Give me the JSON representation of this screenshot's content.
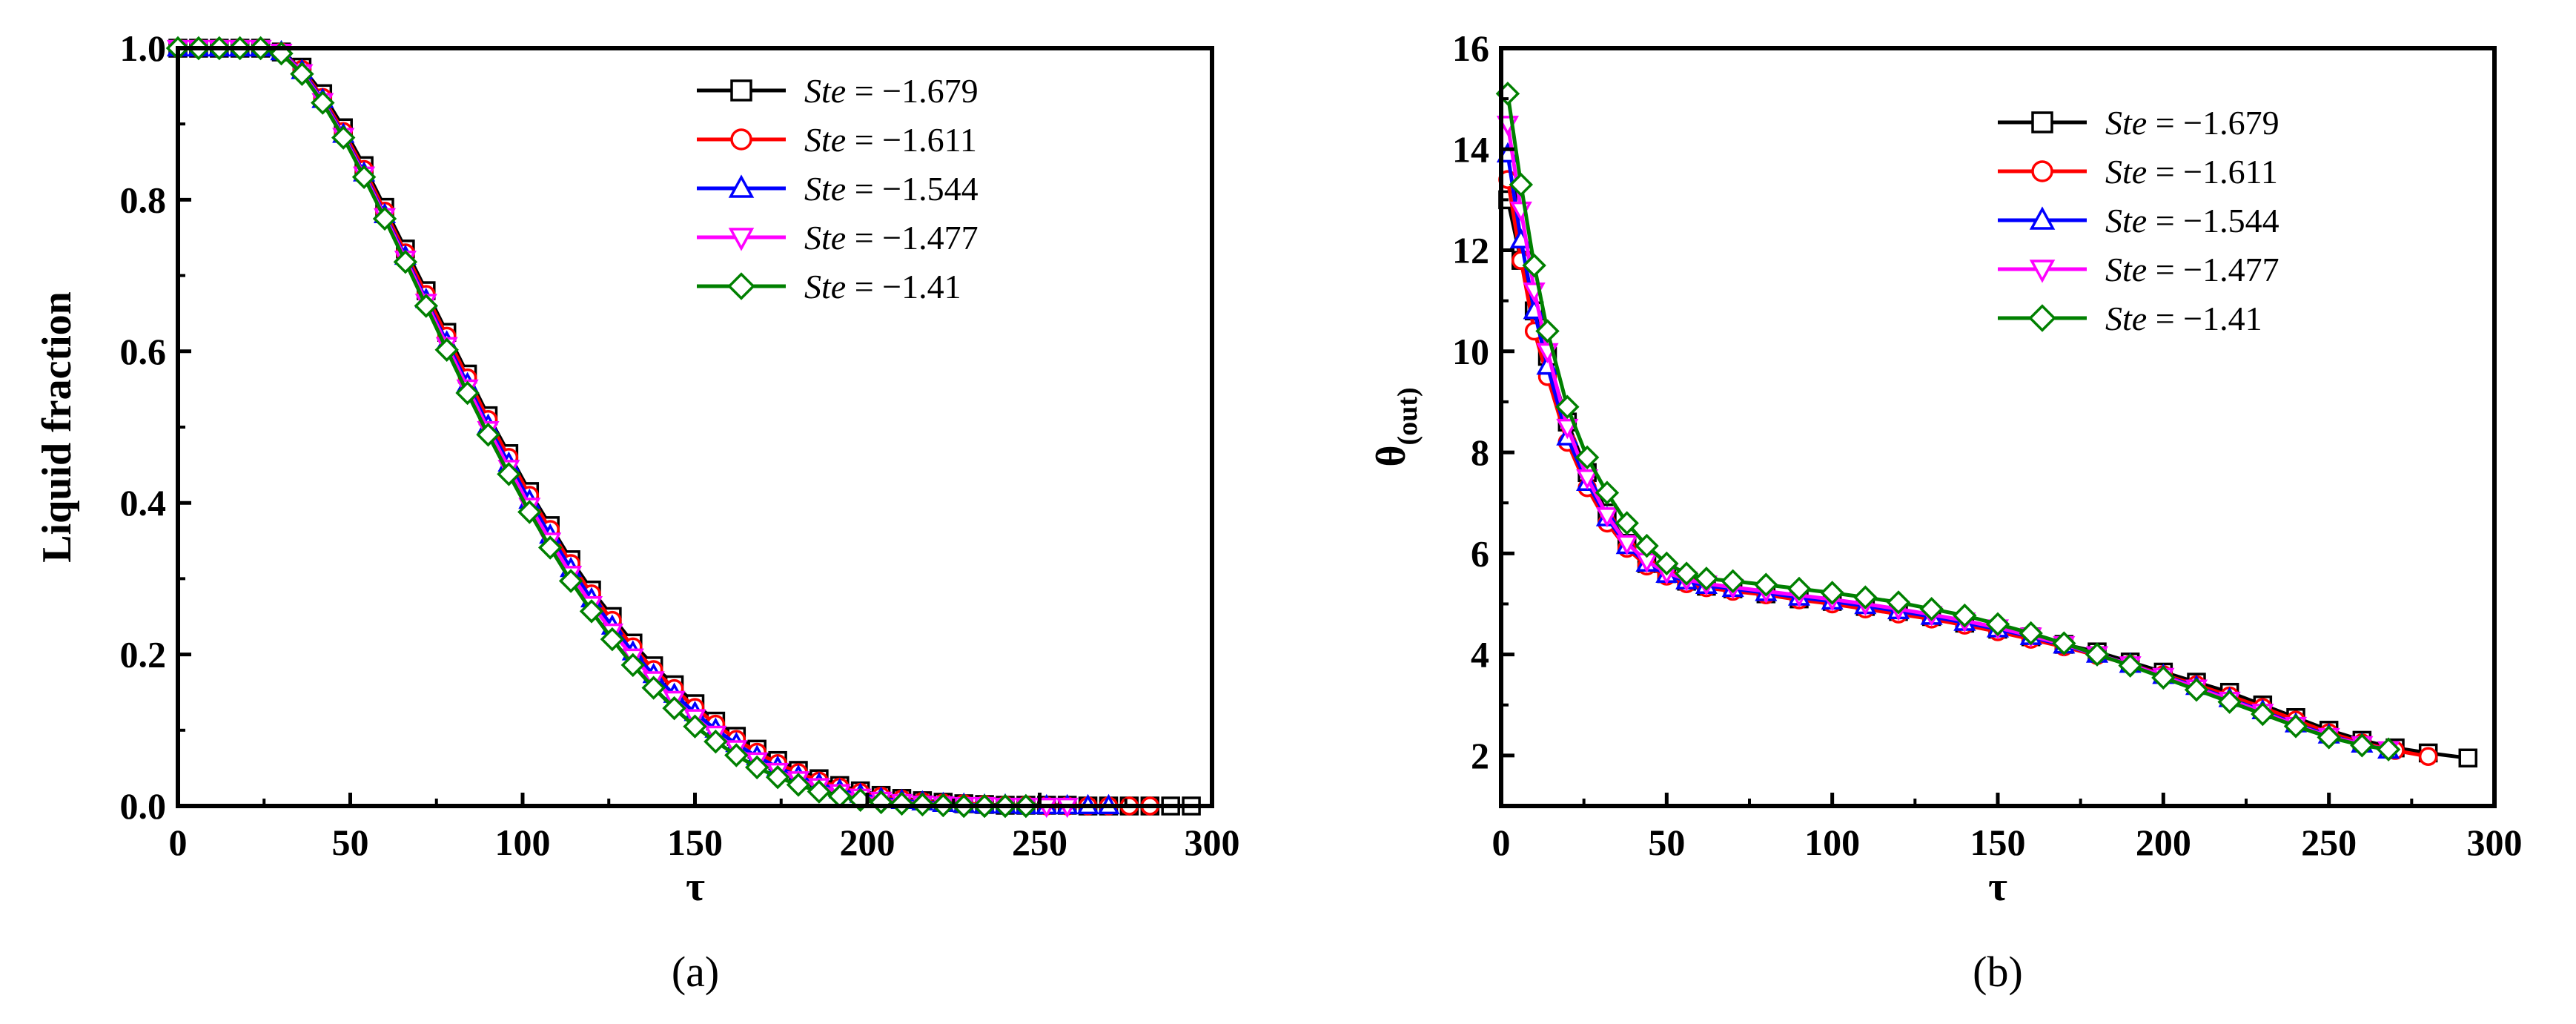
{
  "figure": {
    "panel_a_label": "(a)",
    "panel_b_label": "(b)"
  },
  "colors": {
    "ste_1679": "#000000",
    "ste_1611": "#ff0000",
    "ste_1544": "#0000ff",
    "ste_1477": "#ff00ff",
    "ste_141": "#008000"
  },
  "chart_data": [
    {
      "type": "line",
      "panel": "(a)",
      "title": "",
      "xlabel": "τ",
      "ylabel": "Liquid fraction",
      "xlim": [
        0,
        300
      ],
      "ylim": [
        0,
        1.0
      ],
      "xticks": [
        0,
        50,
        100,
        150,
        200,
        250,
        300
      ],
      "yticks": [
        0.0,
        0.2,
        0.4,
        0.6,
        0.8,
        1.0
      ],
      "xtick_labels": [
        "0",
        "50",
        "100",
        "150",
        "200",
        "250",
        "300"
      ],
      "ytick_labels": [
        "0.0",
        "0.2",
        "0.4",
        "0.6",
        "0.8",
        "1.0"
      ],
      "grid": false,
      "legend_position": "top-right",
      "series": [
        {
          "name": "Ste = −1.679",
          "legend_var": "Ste",
          "legend_value": "= −1.679",
          "color": "#000000",
          "marker": "square",
          "x": [
            0,
            6,
            12,
            18,
            24,
            30,
            36,
            42,
            48,
            54,
            60,
            66,
            72,
            78,
            84,
            90,
            96,
            102,
            108,
            114,
            120,
            126,
            132,
            138,
            144,
            150,
            156,
            162,
            168,
            174,
            180,
            186,
            192,
            198,
            204,
            210,
            216,
            222,
            228,
            234,
            240,
            246,
            252,
            258,
            264,
            270,
            276,
            282,
            288,
            294
          ],
          "y": [
            1.0,
            1.0,
            1.0,
            1.0,
            1.0,
            0.995,
            0.975,
            0.94,
            0.895,
            0.845,
            0.79,
            0.735,
            0.68,
            0.625,
            0.57,
            0.515,
            0.465,
            0.415,
            0.37,
            0.325,
            0.285,
            0.25,
            0.215,
            0.185,
            0.16,
            0.135,
            0.112,
            0.092,
            0.075,
            0.06,
            0.047,
            0.036,
            0.027,
            0.02,
            0.014,
            0.01,
            0.007,
            0.005,
            0.003,
            0.002,
            0.001,
            0.001,
            0.001,
            0.001,
            0.0,
            0.0,
            0.0,
            0.0,
            0.0,
            0.0
          ]
        },
        {
          "name": "Ste = −1.611",
          "legend_var": "Ste",
          "legend_value": "= −1.611",
          "color": "#ff0000",
          "marker": "circle",
          "x": [
            0,
            6,
            12,
            18,
            24,
            30,
            36,
            42,
            48,
            54,
            60,
            66,
            72,
            78,
            84,
            90,
            96,
            102,
            108,
            114,
            120,
            126,
            132,
            138,
            144,
            150,
            156,
            162,
            168,
            174,
            180,
            186,
            192,
            198,
            204,
            210,
            216,
            222,
            228,
            234,
            240,
            246,
            252,
            258,
            264,
            270,
            276,
            282
          ],
          "y": [
            1.0,
            1.0,
            1.0,
            1.0,
            1.0,
            0.995,
            0.972,
            0.935,
            0.89,
            0.84,
            0.785,
            0.73,
            0.675,
            0.62,
            0.565,
            0.51,
            0.46,
            0.41,
            0.365,
            0.32,
            0.28,
            0.245,
            0.21,
            0.18,
            0.155,
            0.13,
            0.108,
            0.088,
            0.071,
            0.056,
            0.044,
            0.033,
            0.025,
            0.018,
            0.013,
            0.009,
            0.006,
            0.004,
            0.003,
            0.002,
            0.001,
            0.001,
            0.0,
            0.0,
            0.0,
            0.0,
            0.0,
            0.0
          ]
        },
        {
          "name": "Ste = −1.544",
          "legend_var": "Ste",
          "legend_value": "= −1.544",
          "color": "#0000ff",
          "marker": "triangle-up",
          "x": [
            0,
            6,
            12,
            18,
            24,
            30,
            36,
            42,
            48,
            54,
            60,
            66,
            72,
            78,
            84,
            90,
            96,
            102,
            108,
            114,
            120,
            126,
            132,
            138,
            144,
            150,
            156,
            162,
            168,
            174,
            180,
            186,
            192,
            198,
            204,
            210,
            216,
            222,
            228,
            234,
            240,
            246,
            252,
            258,
            264,
            270
          ],
          "y": [
            1.0,
            1.0,
            1.0,
            1.0,
            1.0,
            0.995,
            0.97,
            0.932,
            0.886,
            0.835,
            0.78,
            0.725,
            0.668,
            0.612,
            0.557,
            0.502,
            0.452,
            0.403,
            0.357,
            0.313,
            0.273,
            0.237,
            0.203,
            0.173,
            0.147,
            0.123,
            0.101,
            0.082,
            0.065,
            0.051,
            0.039,
            0.029,
            0.021,
            0.015,
            0.01,
            0.007,
            0.005,
            0.003,
            0.002,
            0.001,
            0.001,
            0.0,
            0.0,
            0.0,
            0.0,
            0.0
          ]
        },
        {
          "name": "Ste = −1.477",
          "legend_var": "Ste",
          "legend_value": "= −1.477",
          "color": "#ff00ff",
          "marker": "triangle-down",
          "x": [
            0,
            6,
            12,
            18,
            24,
            30,
            36,
            42,
            48,
            54,
            60,
            66,
            72,
            78,
            84,
            90,
            96,
            102,
            108,
            114,
            120,
            126,
            132,
            138,
            144,
            150,
            156,
            162,
            168,
            174,
            180,
            186,
            192,
            198,
            204,
            210,
            216,
            222,
            228,
            234,
            240,
            246,
            252,
            258
          ],
          "y": [
            1.0,
            1.0,
            1.0,
            1.0,
            1.0,
            0.995,
            0.968,
            0.93,
            0.884,
            0.833,
            0.778,
            0.722,
            0.665,
            0.608,
            0.552,
            0.497,
            0.446,
            0.396,
            0.35,
            0.306,
            0.266,
            0.23,
            0.197,
            0.167,
            0.141,
            0.117,
            0.095,
            0.076,
            0.06,
            0.046,
            0.035,
            0.026,
            0.018,
            0.012,
            0.008,
            0.005,
            0.003,
            0.002,
            0.001,
            0.001,
            0.0,
            0.0,
            0.0,
            0.0
          ]
        },
        {
          "name": "Ste = −1.41",
          "legend_var": "Ste",
          "legend_value": "= −1.41",
          "color": "#008000",
          "marker": "diamond",
          "x": [
            0,
            6,
            12,
            18,
            24,
            30,
            36,
            42,
            48,
            54,
            60,
            66,
            72,
            78,
            84,
            90,
            96,
            102,
            108,
            114,
            120,
            126,
            132,
            138,
            144,
            150,
            156,
            162,
            168,
            174,
            180,
            186,
            192,
            198,
            204,
            210,
            216,
            222,
            228,
            234,
            240,
            246
          ],
          "y": [
            1.0,
            1.0,
            1.0,
            1.0,
            1.0,
            0.993,
            0.966,
            0.928,
            0.882,
            0.83,
            0.775,
            0.718,
            0.66,
            0.602,
            0.545,
            0.49,
            0.438,
            0.388,
            0.341,
            0.297,
            0.257,
            0.22,
            0.186,
            0.156,
            0.129,
            0.105,
            0.085,
            0.067,
            0.051,
            0.038,
            0.028,
            0.019,
            0.013,
            0.008,
            0.005,
            0.003,
            0.002,
            0.001,
            0.0,
            0.0,
            0.0,
            0.0
          ]
        }
      ]
    },
    {
      "type": "line",
      "panel": "(b)",
      "title": "",
      "xlabel": "τ",
      "ylabel": "θ",
      "ylabel_sub": "(out)",
      "xlim": [
        0,
        300
      ],
      "ylim": [
        1,
        16
      ],
      "xticks": [
        0,
        50,
        100,
        150,
        200,
        250,
        300
      ],
      "yticks": [
        2,
        4,
        6,
        8,
        10,
        12,
        14,
        16
      ],
      "xtick_labels": [
        "0",
        "50",
        "100",
        "150",
        "200",
        "250",
        "300"
      ],
      "ytick_labels": [
        "2",
        "4",
        "6",
        "8",
        "10",
        "12",
        "14",
        "16"
      ],
      "grid": false,
      "legend_position": "top-right",
      "series": [
        {
          "name": "Ste = −1.679",
          "legend_var": "Ste",
          "legend_value": "= −1.679",
          "color": "#000000",
          "marker": "square",
          "x": [
            2,
            6,
            10,
            14,
            20,
            26,
            32,
            38,
            44,
            50,
            56,
            62,
            70,
            80,
            90,
            100,
            110,
            120,
            130,
            140,
            150,
            160,
            170,
            180,
            190,
            200,
            210,
            220,
            230,
            240,
            250,
            260,
            270,
            280,
            292
          ],
          "y": [
            13.0,
            11.8,
            10.8,
            9.9,
            8.6,
            7.6,
            6.8,
            6.2,
            5.8,
            5.6,
            5.45,
            5.35,
            5.3,
            5.2,
            5.1,
            5.05,
            4.95,
            4.85,
            4.75,
            4.62,
            4.5,
            4.35,
            4.2,
            4.05,
            3.85,
            3.65,
            3.45,
            3.25,
            3.0,
            2.75,
            2.5,
            2.3,
            2.15,
            2.05,
            1.95
          ]
        },
        {
          "name": "Ste = −1.611",
          "legend_var": "Ste",
          "legend_value": "= −1.611",
          "color": "#ff0000",
          "marker": "circle",
          "x": [
            2,
            6,
            10,
            14,
            20,
            26,
            32,
            38,
            44,
            50,
            56,
            62,
            70,
            80,
            90,
            100,
            110,
            120,
            130,
            140,
            150,
            160,
            170,
            180,
            190,
            200,
            210,
            220,
            230,
            240,
            250,
            260,
            270,
            280
          ],
          "y": [
            13.4,
            11.8,
            10.4,
            9.5,
            8.2,
            7.3,
            6.6,
            6.1,
            5.75,
            5.55,
            5.4,
            5.32,
            5.25,
            5.18,
            5.08,
            5.0,
            4.9,
            4.8,
            4.7,
            4.58,
            4.45,
            4.3,
            4.15,
            3.98,
            3.8,
            3.6,
            3.4,
            3.18,
            2.95,
            2.7,
            2.45,
            2.25,
            2.1,
            1.98
          ]
        },
        {
          "name": "Ste = −1.544",
          "legend_var": "Ste",
          "legend_value": "= −1.544",
          "color": "#0000ff",
          "marker": "triangle-up",
          "x": [
            2,
            6,
            10,
            14,
            20,
            26,
            32,
            38,
            44,
            50,
            56,
            62,
            70,
            80,
            90,
            100,
            110,
            120,
            130,
            140,
            150,
            160,
            170,
            180,
            190,
            200,
            210,
            220,
            230,
            240,
            250,
            260,
            268
          ],
          "y": [
            13.9,
            12.2,
            10.8,
            9.7,
            8.3,
            7.4,
            6.7,
            6.15,
            5.8,
            5.58,
            5.45,
            5.36,
            5.3,
            5.22,
            5.13,
            5.05,
            4.96,
            4.86,
            4.75,
            4.63,
            4.5,
            4.35,
            4.18,
            4.0,
            3.8,
            3.58,
            3.36,
            3.12,
            2.88,
            2.62,
            2.4,
            2.22,
            2.1
          ]
        },
        {
          "name": "Ste = −1.477",
          "legend_var": "Ste",
          "legend_value": "= −1.477",
          "color": "#ff00ff",
          "marker": "triangle-down",
          "x": [
            2,
            6,
            10,
            14,
            20,
            26,
            32,
            38,
            44,
            50,
            56,
            62,
            70,
            80,
            90,
            100,
            110,
            120,
            130,
            140,
            150,
            160,
            170,
            180,
            190,
            200,
            210,
            220,
            230,
            240,
            250,
            260,
            268
          ],
          "y": [
            14.5,
            12.8,
            11.2,
            10.0,
            8.5,
            7.5,
            6.75,
            6.2,
            5.85,
            5.62,
            5.48,
            5.4,
            5.33,
            5.25,
            5.17,
            5.09,
            5.0,
            4.9,
            4.79,
            4.67,
            4.53,
            4.37,
            4.2,
            4.0,
            3.8,
            3.57,
            3.34,
            3.1,
            2.86,
            2.6,
            2.38,
            2.22,
            2.12
          ]
        },
        {
          "name": "Ste = −1.41",
          "legend_var": "Ste",
          "legend_value": "= −1.41",
          "color": "#008000",
          "marker": "diamond",
          "x": [
            2,
            6,
            10,
            14,
            20,
            26,
            32,
            38,
            44,
            50,
            56,
            62,
            70,
            80,
            90,
            100,
            110,
            120,
            130,
            140,
            150,
            160,
            170,
            180,
            190,
            200,
            210,
            220,
            230,
            240,
            250,
            260,
            268
          ],
          "y": [
            15.1,
            13.3,
            11.7,
            10.4,
            8.9,
            7.9,
            7.2,
            6.6,
            6.15,
            5.8,
            5.6,
            5.5,
            5.45,
            5.38,
            5.3,
            5.22,
            5.13,
            5.03,
            4.9,
            4.77,
            4.6,
            4.42,
            4.22,
            4.0,
            3.78,
            3.54,
            3.3,
            3.06,
            2.82,
            2.58,
            2.36,
            2.2,
            2.12
          ]
        }
      ]
    }
  ]
}
